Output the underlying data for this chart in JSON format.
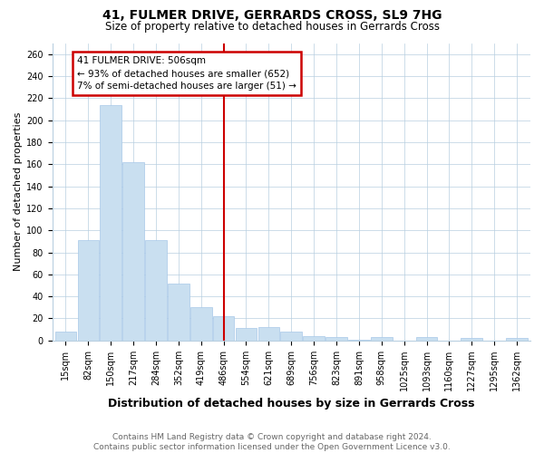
{
  "title": "41, FULMER DRIVE, GERRARDS CROSS, SL9 7HG",
  "subtitle": "Size of property relative to detached houses in Gerrards Cross",
  "xlabel": "Distribution of detached houses by size in Gerrards Cross",
  "ylabel": "Number of detached properties",
  "categories": [
    "15sqm",
    "82sqm",
    "150sqm",
    "217sqm",
    "284sqm",
    "352sqm",
    "419sqm",
    "486sqm",
    "554sqm",
    "621sqm",
    "689sqm",
    "756sqm",
    "823sqm",
    "891sqm",
    "958sqm",
    "1025sqm",
    "1093sqm",
    "1160sqm",
    "1227sqm",
    "1295sqm",
    "1362sqm"
  ],
  "values": [
    8,
    91,
    214,
    162,
    91,
    52,
    30,
    22,
    11,
    12,
    8,
    4,
    3,
    1,
    3,
    0,
    3,
    0,
    2,
    0,
    2
  ],
  "bar_color": "#c9dff0",
  "bar_edge_color": "#a8c8e8",
  "vline_x_index": 7,
  "vline_color": "#cc0000",
  "annotation_text": "41 FULMER DRIVE: 506sqm\n← 93% of detached houses are smaller (652)\n7% of semi-detached houses are larger (51) →",
  "annotation_box_color": "#cc0000",
  "ylim": [
    0,
    270
  ],
  "yticks": [
    0,
    20,
    40,
    60,
    80,
    100,
    120,
    140,
    160,
    180,
    200,
    220,
    240,
    260
  ],
  "footer": "Contains HM Land Registry data © Crown copyright and database right 2024.\nContains public sector information licensed under the Open Government Licence v3.0.",
  "title_fontsize": 10,
  "subtitle_fontsize": 8.5,
  "xlabel_fontsize": 9,
  "ylabel_fontsize": 8,
  "tick_fontsize": 7,
  "footer_fontsize": 6.5,
  "annotation_fontsize": 7.5
}
